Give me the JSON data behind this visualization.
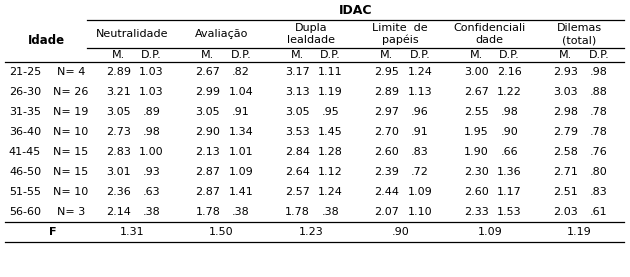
{
  "title": "IDAC",
  "idade_col": [
    "21-25",
    "26-30",
    "31-35",
    "36-40",
    "41-45",
    "46-50",
    "51-55",
    "56-60"
  ],
  "n_col": [
    "N= 4",
    "N= 26",
    "N= 19",
    "N= 10",
    "N= 15",
    "N= 15",
    "N= 10",
    "N= 3"
  ],
  "data_rows": [
    [
      "2.89",
      "1.03",
      "2.67",
      ".82",
      "3.17",
      "1.11",
      "2.95",
      "1.24",
      "3.00",
      "2.16",
      "2.93",
      ".98"
    ],
    [
      "3.21",
      "1.03",
      "2.99",
      "1.04",
      "3.13",
      "1.19",
      "2.89",
      "1.13",
      "2.67",
      "1.22",
      "3.03",
      ".88"
    ],
    [
      "3.05",
      ".89",
      "3.05",
      ".91",
      "3.05",
      ".95",
      "2.97",
      ".96",
      "2.55",
      ".98",
      "2.98",
      ".78"
    ],
    [
      "2.73",
      ".98",
      "2.90",
      "1.34",
      "3.53",
      "1.45",
      "2.70",
      ".91",
      "1.95",
      ".90",
      "2.79",
      ".78"
    ],
    [
      "2.83",
      "1.00",
      "2.13",
      "1.01",
      "2.84",
      "1.28",
      "2.60",
      ".83",
      "1.90",
      ".66",
      "2.58",
      ".76"
    ],
    [
      "3.01",
      ".93",
      "2.87",
      "1.09",
      "2.64",
      "1.12",
      "2.39",
      ".72",
      "2.30",
      "1.36",
      "2.71",
      ".80"
    ],
    [
      "2.36",
      ".63",
      "2.87",
      "1.41",
      "2.57",
      "1.24",
      "2.44",
      "1.09",
      "2.60",
      "1.17",
      "2.51",
      ".83"
    ],
    [
      "2.14",
      ".38",
      "1.78",
      ".38",
      "1.78",
      ".38",
      "2.07",
      "1.10",
      "2.33",
      "1.53",
      "2.03",
      ".61"
    ]
  ],
  "f_labels": [
    "1.31",
    "1.50",
    "1.23",
    ".90",
    "1.09",
    "1.19"
  ],
  "group_names_line1": [
    "Neutralidade",
    "Avaliação",
    "Dupla",
    "Limite  de",
    "Confidenciali",
    "Dilemas"
  ],
  "group_names_line2": [
    "",
    "",
    "lealdade",
    "papéis",
    "dade",
    "(total)"
  ],
  "background": "#ffffff",
  "font_size": 8.0,
  "bold_font_size": 8.5
}
